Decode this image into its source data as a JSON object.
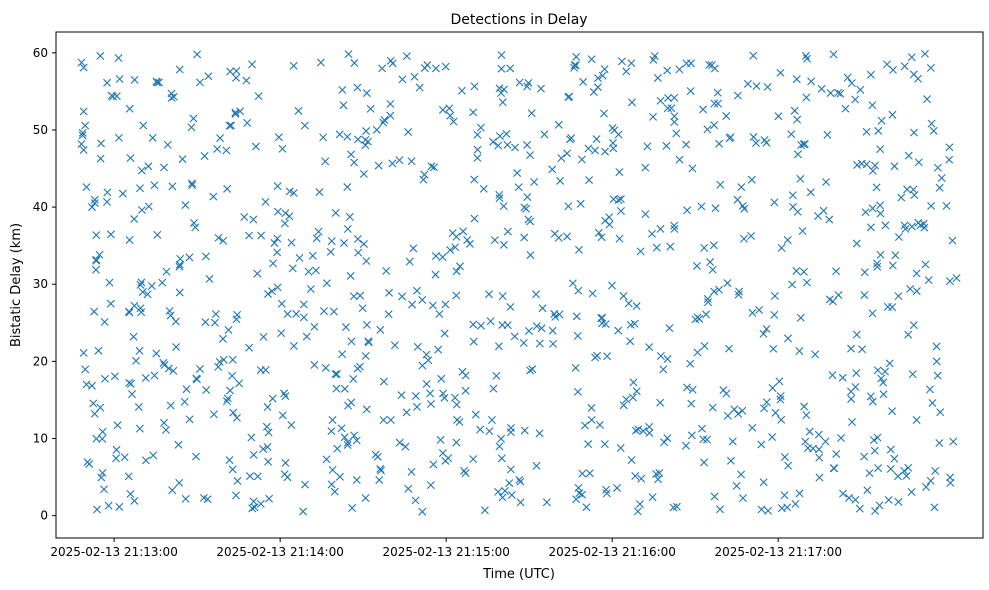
{
  "chart_data": {
    "type": "scatter",
    "title": "Detections in Delay",
    "xlabel": "Time (UTC)",
    "ylabel": "Bistatic Delay (km)",
    "x_type": "datetime",
    "xlim": [
      "2025-02-13 21:12:39",
      "2025-02-13 21:18:14"
    ],
    "ylim": [
      -2.9,
      62.7
    ],
    "x_ticks": [
      "2025-02-13 21:13:00",
      "2025-02-13 21:14:00",
      "2025-02-13 21:15:00",
      "2025-02-13 21:16:00",
      "2025-02-13 21:17:00"
    ],
    "y_ticks": [
      0,
      10,
      20,
      30,
      40,
      50,
      60
    ],
    "grid": false,
    "legend": "none",
    "marker": "x",
    "marker_color": "#1f77b4",
    "series": [
      {
        "points_note_excluded": true,
        "count": 1000,
        "time_start": "2025-02-13 21:12:48",
        "time_end": "2025-02-13 21:18:05",
        "delay_min": 0.5,
        "delay_max": 59.9,
        "anchors": [
          [
            "2025-02-13 21:12:49",
            58.1
          ],
          [
            "2025-02-13 21:12:49",
            52.4
          ],
          [
            "2025-02-13 21:12:49",
            47.4
          ],
          [
            "2025-02-13 21:12:49",
            21.1
          ],
          [
            "2025-02-13 21:12:50",
            17.0
          ],
          [
            "2025-02-13 21:12:51",
            6.7
          ],
          [
            "2025-02-13 21:12:52",
            40.0
          ],
          [
            "2025-02-13 21:12:53",
            13.2
          ],
          [
            "2025-02-13 21:12:55",
            59.6
          ],
          [
            "2025-02-13 21:12:58",
            1.3
          ],
          [
            "2025-02-13 21:13:02",
            56.6
          ],
          [
            "2025-02-13 21:13:21",
            3.3
          ],
          [
            "2025-02-13 21:13:30",
            59.8
          ],
          [
            "2025-02-13 21:14:26",
            1.0
          ],
          [
            "2025-02-13 21:14:40",
            12.4
          ],
          [
            "2025-02-13 21:15:14",
            0.7
          ],
          [
            "2025-02-13 21:15:20",
            59.7
          ],
          [
            "2025-02-13 21:16:10",
            1.5
          ],
          [
            "2025-02-13 21:16:20",
            20.3
          ],
          [
            "2025-02-13 21:16:36",
            58.4
          ],
          [
            "2025-02-13 21:17:10",
            59.6
          ],
          [
            "2025-02-13 21:17:20",
            59.8
          ],
          [
            "2025-02-13 21:17:35",
            0.6
          ],
          [
            "2025-02-13 21:17:47",
            6.2
          ],
          [
            "2025-02-13 21:17:49",
            57.2
          ],
          [
            "2025-02-13 21:17:49",
            24.7
          ],
          [
            "2025-02-13 21:17:50",
            12.4
          ],
          [
            "2025-02-13 21:17:50",
            31.4
          ]
        ]
      }
    ]
  }
}
